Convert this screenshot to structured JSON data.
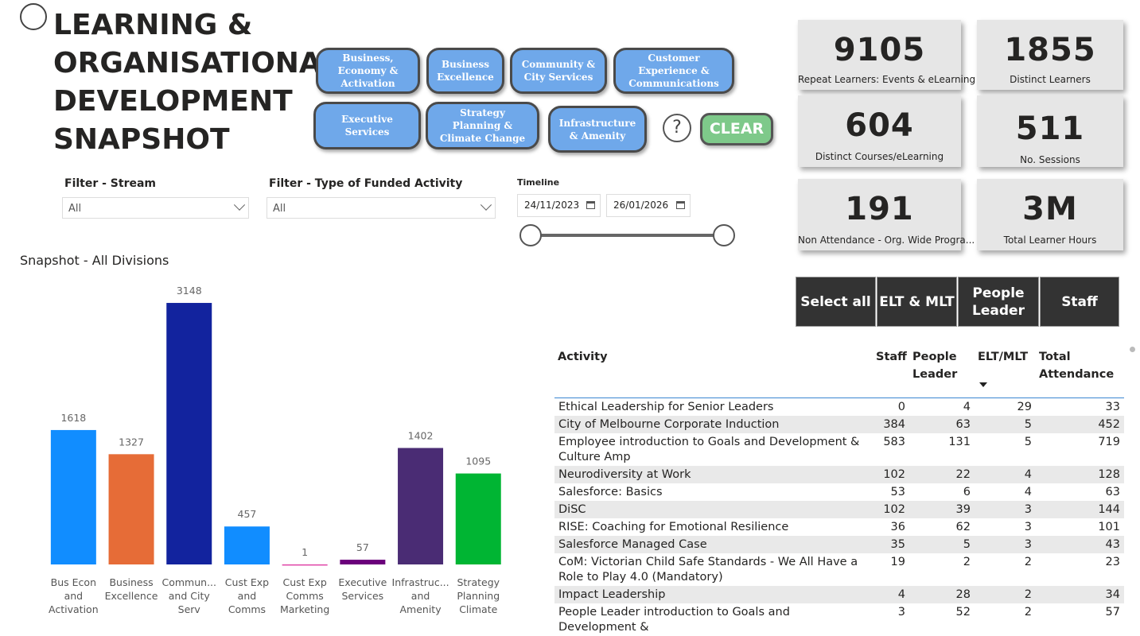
{
  "header": {
    "title": "LEARNING & ORGANISATIONAL DEVELOPMENT SNAPSHOT"
  },
  "division_buttons": [
    "Business, Economy & Activation",
    "Business Excellence",
    "Community & City Services",
    "Customer Experience & Communications",
    "Executive Services",
    "Strategy Planning & Climate Change",
    "Infrastructure & Amenity"
  ],
  "help_button": "?",
  "clear_button": "CLEAR",
  "filters": {
    "stream": {
      "label": "Filter - Stream",
      "value": "All"
    },
    "activity_type": {
      "label": "Filter - Type of Funded Activity",
      "value": "All"
    },
    "timeline": {
      "label": "Timeline",
      "start": "24/11/2023",
      "end": "26/01/2026"
    }
  },
  "kpis": [
    {
      "value": 9105,
      "label": "Repeat Learners: Events & eLearning"
    },
    {
      "value": 1855,
      "label": "Distinct Learners"
    },
    {
      "value": 604,
      "label": "Distinct Courses/eLearning"
    },
    {
      "value": 511,
      "label": "No. Sessions"
    },
    {
      "value": 191,
      "label": "Non Attendance - Org. Wide Progra..."
    },
    {
      "value": "3M",
      "label": "Total Learner Hours"
    }
  ],
  "audience_buttons": [
    "Select all",
    "ELT & MLT",
    "People Leader",
    "Staff"
  ],
  "table": {
    "columns": [
      "Activity",
      "Staff",
      "People Leader",
      "ELT/MLT",
      "Total Attendance"
    ],
    "rows": [
      [
        "Ethical Leadership for Senior Leaders",
        0,
        4,
        29,
        33
      ],
      [
        "City of Melbourne Corporate Induction",
        384,
        63,
        5,
        452
      ],
      [
        "Employee introduction to Goals and Development & Culture Amp",
        583,
        131,
        5,
        719
      ],
      [
        "Neurodiversity at Work",
        102,
        22,
        4,
        128
      ],
      [
        "Salesforce: Basics",
        53,
        6,
        4,
        63
      ],
      [
        "DiSC",
        102,
        39,
        3,
        144
      ],
      [
        "RISE: Coaching for Emotional Resilience",
        36,
        62,
        3,
        101
      ],
      [
        "Salesforce Managed Case",
        35,
        5,
        3,
        43
      ],
      [
        "CoM: Victorian Child Safe Standards - We All Have a Role to Play 4.0 (Mandatory)",
        19,
        2,
        2,
        23
      ],
      [
        "Impact Leadership",
        4,
        28,
        2,
        34
      ],
      [
        "People Leader introduction to Goals and Development &",
        3,
        52,
        2,
        57
      ]
    ]
  },
  "chart_data": {
    "type": "bar",
    "title": "Snapshot - All Divisions",
    "categories": [
      "Bus Econ and Activation",
      "Business Excellence",
      "Commun... and City Serv",
      "Cust Exp and Comms",
      "Cust Exp Comms Marketing",
      "Executive Services",
      "Infrastruc... and Amenity",
      "Strategy Planning Climate"
    ],
    "values": [
      1618,
      1327,
      3148,
      457,
      1,
      57,
      1402,
      1095
    ],
    "colors": [
      "#118dff",
      "#e66c37",
      "#12239e",
      "#118dff",
      "#e044a7",
      "#6b007b",
      "#4a2c74",
      "#00b533"
    ],
    "ylim": [
      0,
      3200
    ]
  }
}
